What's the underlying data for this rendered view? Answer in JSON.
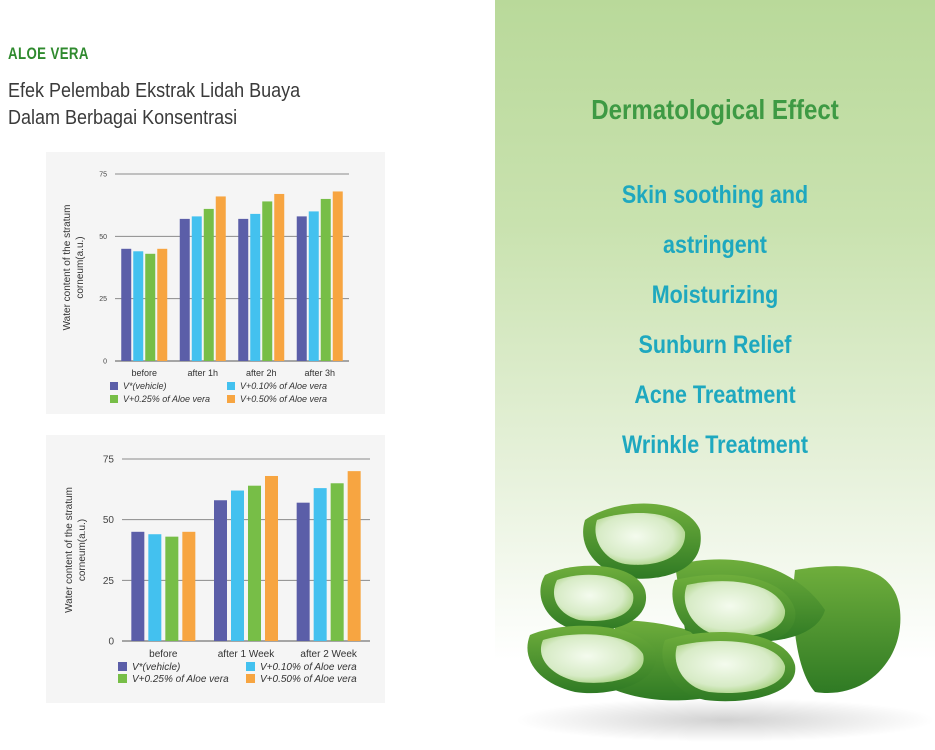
{
  "header": {
    "brand": "ALOE VERA",
    "subtitle": "Efek Pelembab Ekstrak Lidah Buaya Dalam Berbagai Konsentrasi"
  },
  "right_panel": {
    "title": "Dermatological Effect",
    "benefits": [
      "Skin soothing and",
      "astringent",
      "Moisturizing",
      "Sunburn Relief",
      "Acne Treatment",
      "Wrinkle Treatment"
    ]
  },
  "colors": {
    "vehicle": "#5b5ea8",
    "aloe_010": "#43c1ef",
    "aloe_025": "#77be47",
    "aloe_050": "#f7a541",
    "brand_green": "#2f8a2e",
    "title_green": "#3e9a44",
    "benefit_teal": "#1ea8bf"
  },
  "chart_data": [
    {
      "type": "bar",
      "categories": [
        "before",
        "after 1h",
        "after 2h",
        "after 3h"
      ],
      "series": [
        {
          "name": "V*(vehicle)",
          "values": [
            45,
            57,
            57,
            58
          ]
        },
        {
          "name": "V+0.10% of Aloe vera",
          "values": [
            44,
            58,
            59,
            60
          ]
        },
        {
          "name": "V+0.25% of Aloe vera",
          "values": [
            43,
            61,
            64,
            65
          ]
        },
        {
          "name": "V+0.50% of Aloe vera",
          "values": [
            45,
            66,
            67,
            68
          ]
        }
      ],
      "ylabel": "Water content of the stratum corneum(a.u.)",
      "yticks": [
        "0",
        "25",
        "50",
        "75"
      ],
      "ylim": [
        0,
        75
      ],
      "grid": true,
      "legend_position": "bottom"
    },
    {
      "type": "bar",
      "categories": [
        "before",
        "after 1 Week",
        "after 2 Week"
      ],
      "series": [
        {
          "name": "V*(vehicle)",
          "values": [
            45,
            58,
            57
          ]
        },
        {
          "name": "V+0.10% of Aloe vera",
          "values": [
            44,
            62,
            63
          ]
        },
        {
          "name": "V+0.25% of Aloe vera",
          "values": [
            43,
            64,
            65
          ]
        },
        {
          "name": "V+0.50% of Aloe vera",
          "values": [
            45,
            68,
            70
          ]
        }
      ],
      "ylabel": "Water content of the stratum corneum(a.u.)",
      "yticks": [
        "0",
        "25",
        "50",
        "75"
      ],
      "ylim": [
        0,
        75
      ],
      "grid": true,
      "legend_position": "bottom"
    }
  ]
}
